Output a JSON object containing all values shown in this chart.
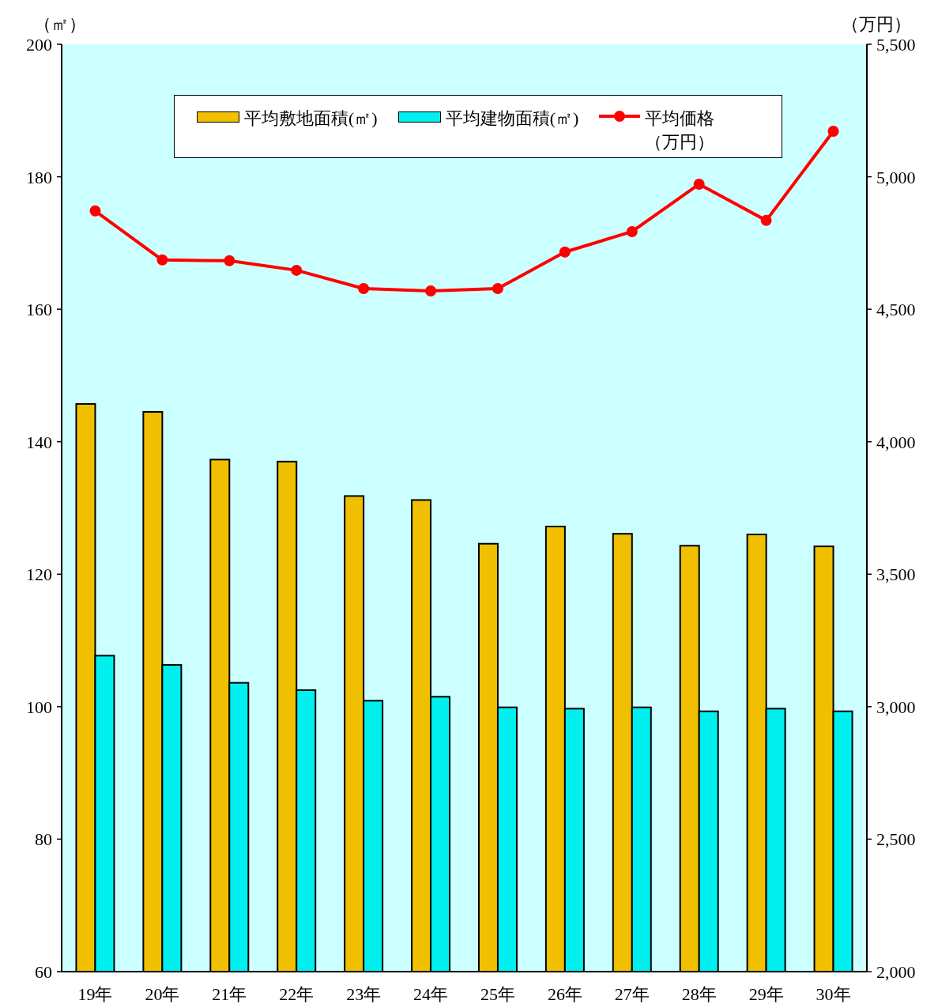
{
  "chart_data": {
    "type": "bar",
    "categories": [
      "19年",
      "20年",
      "21年",
      "22年",
      "23年",
      "24年",
      "25年",
      "26年",
      "27年",
      "28年",
      "29年",
      "30年"
    ],
    "ylabel": "（㎡）",
    "y2label": "（万円）",
    "ylim": [
      60,
      200
    ],
    "yticks": [
      60,
      80,
      100,
      120,
      140,
      160,
      180,
      200
    ],
    "y2lim": [
      2000,
      5500
    ],
    "y2ticks": [
      {
        "value": 2000,
        "label": "2,000"
      },
      {
        "value": 2500,
        "label": "2,500"
      },
      {
        "value": 3000,
        "label": "3,000"
      },
      {
        "value": 3500,
        "label": "3,500"
      },
      {
        "value": 4000,
        "label": "4,000"
      },
      {
        "value": 4500,
        "label": "4,500"
      },
      {
        "value": 5000,
        "label": "5,000"
      },
      {
        "value": 5500,
        "label": "5,500"
      }
    ],
    "legend": "top",
    "grid": false,
    "series": [
      {
        "name": "平均敷地面積(㎡)",
        "color": "#f0c000",
        "values": [
          145.7,
          144.5,
          137.3,
          137.0,
          131.8,
          131.2,
          124.6,
          127.2,
          126.1,
          124.3,
          126.0,
          124.2
        ]
      },
      {
        "name": "平均建物面積(㎡)",
        "color": "#00f0f0",
        "values": [
          107.7,
          106.3,
          103.6,
          102.5,
          100.9,
          101.5,
          99.9,
          99.7,
          99.9,
          99.3,
          99.7,
          99.3
        ]
      },
      {
        "name": "平均価格（万円）",
        "type": "line",
        "axis": "y2",
        "marker": "circle",
        "color": "#ff0000",
        "values": [
          4871,
          4686,
          4683,
          4647,
          4578,
          4569,
          4578,
          4716,
          4793,
          4972,
          4835,
          5172
        ]
      }
    ]
  }
}
